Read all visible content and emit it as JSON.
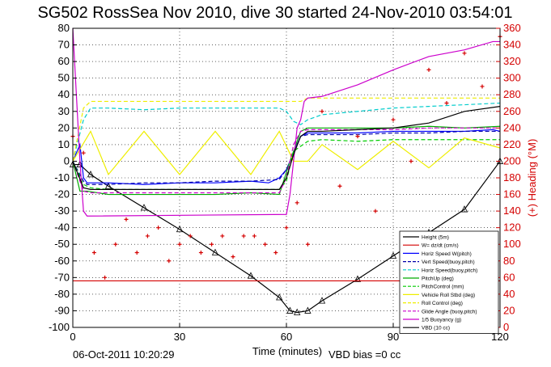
{
  "chart_data": {
    "type": "line",
    "title": "SG502 RossSea Nov 2010, dive 30 started 24-Nov-2010 03:54:01",
    "xlabel": "Time (minutes)",
    "ylabel_right": "(+) Heading (°M)",
    "xlim": [
      0,
      120
    ],
    "ylim": [
      -100,
      80
    ],
    "ylim_right": [
      0,
      360
    ],
    "x_ticks": [
      "0",
      "30",
      "60",
      "90",
      "120"
    ],
    "y_ticks": [
      "80",
      "70",
      "60",
      "50",
      "40",
      "30",
      "20",
      "10",
      "0",
      "-10",
      "-20",
      "-30",
      "-40",
      "-50",
      "-60",
      "-70",
      "-80",
      "-90",
      "-100"
    ],
    "y_right_ticks": [
      "360",
      "340",
      "320",
      "300",
      "280",
      "260",
      "240",
      "220",
      "200",
      "180",
      "160",
      "140",
      "120",
      "100",
      "80",
      "60",
      "40",
      "20",
      "0"
    ],
    "grid": true,
    "legend_position": "bottom-right",
    "footer_left": "06-Oct-2011 10:20:29",
    "footer_right": "VBD bias =0 cc",
    "series": [
      {
        "name": "Height (5m)",
        "color": "#000000",
        "style": "solid-triangle",
        "x": [
          0,
          2,
          5,
          10,
          20,
          30,
          40,
          50,
          58,
          61,
          63,
          66,
          70,
          80,
          90,
          100,
          110,
          120
        ],
        "y": [
          -2,
          -2,
          -8,
          -15,
          -28,
          -41,
          -55,
          -69,
          -82,
          -90,
          -91,
          -90,
          -84,
          -71,
          -57,
          -43,
          -29,
          0
        ]
      },
      {
        "name": "W= dz/dt (cm/s)",
        "color": "#d40000",
        "style": "solid",
        "x": [
          0,
          120
        ],
        "y": [
          -72,
          -72
        ]
      },
      {
        "name": "Horiz Speed W(pitch)",
        "color": "#0000ff",
        "style": "solid",
        "x": [
          0,
          2,
          3,
          4,
          10,
          20,
          30,
          40,
          50,
          55,
          58,
          60,
          62,
          64,
          66,
          70,
          80,
          90,
          100,
          110,
          118,
          120
        ],
        "y": [
          0,
          10,
          -10,
          -13,
          -13,
          -14,
          -13,
          -13,
          -12,
          -13,
          -10,
          -5,
          5,
          15,
          17,
          17,
          17,
          18,
          18,
          18,
          19,
          18
        ]
      },
      {
        "name": "Vert Speed(buoy,pitch)",
        "color": "#0000aa",
        "style": "dashed",
        "x": [
          0,
          3,
          4,
          10,
          20,
          30,
          40,
          50,
          58,
          60,
          62,
          64,
          66,
          70,
          80,
          90,
          100,
          110,
          120
        ],
        "y": [
          0,
          -12,
          -14,
          -14,
          -13,
          -13,
          -12,
          -12,
          -11,
          -5,
          5,
          15,
          16,
          16,
          16,
          17,
          17,
          18,
          18
        ]
      },
      {
        "name": "Horiz Speed(buoy,pitch)",
        "color": "#00cccc",
        "style": "dashed",
        "x": [
          0,
          3,
          5,
          10,
          20,
          30,
          40,
          50,
          58,
          60,
          62,
          64,
          66,
          70,
          80,
          90,
          100,
          110,
          120
        ],
        "y": [
          0,
          25,
          32,
          32,
          31,
          32,
          32,
          32,
          32,
          30,
          24,
          22,
          25,
          28,
          30,
          32,
          33,
          34,
          35
        ]
      },
      {
        "name": "PitchUp (deg)",
        "color": "#00aa00",
        "style": "solid",
        "x": [
          0,
          2,
          4,
          10,
          20,
          30,
          40,
          50,
          58,
          61,
          64,
          66,
          70,
          80,
          90,
          100,
          110,
          120
        ],
        "y": [
          0,
          -18,
          -18,
          -20,
          -20,
          -20,
          -20,
          -19,
          -20,
          0,
          18,
          20,
          20,
          20,
          20,
          21,
          20,
          21
        ]
      },
      {
        "name": "PitchControl (mm)",
        "color": "#00cc00",
        "style": "dashed",
        "x": [
          0,
          3,
          5,
          10,
          20,
          30,
          40,
          50,
          58,
          60,
          62,
          66,
          70,
          80,
          90,
          100,
          110,
          120
        ],
        "y": [
          0,
          -14,
          -16,
          -17,
          -17,
          -17,
          -17,
          -17,
          -17,
          -12,
          6,
          12,
          13,
          12,
          13,
          13,
          13,
          13
        ]
      },
      {
        "name": "Vehicle Roll Stbd (deg)",
        "color": "#eeee00",
        "style": "solid",
        "x": [
          0,
          5,
          10,
          20,
          30,
          40,
          50,
          58,
          62,
          66,
          70,
          80,
          90,
          100,
          110,
          120
        ],
        "y": [
          0,
          18,
          -8,
          18,
          -8,
          18,
          -8,
          18,
          0,
          0,
          10,
          -5,
          12,
          -4,
          14,
          8
        ]
      },
      {
        "name": "Roll Control (deg)",
        "color": "#eeee00",
        "style": "dashed",
        "x": [
          0,
          3,
          5,
          10,
          20,
          30,
          40,
          50,
          58,
          60,
          64,
          66,
          70,
          80,
          90,
          100,
          110,
          120
        ],
        "y": [
          0,
          32,
          36,
          36,
          36,
          36,
          36,
          36,
          36,
          36,
          36,
          38,
          38,
          38,
          38,
          38,
          38,
          38
        ]
      },
      {
        "name": "Glide Angle (buoy,pitch)",
        "color": "#cc00cc",
        "style": "dashed",
        "x": [
          0,
          3,
          5,
          10,
          20,
          30,
          40,
          50,
          58,
          60,
          62,
          64,
          66,
          70,
          80,
          90,
          100,
          110,
          120
        ],
        "y": [
          0,
          -18,
          -19,
          -19,
          -19,
          -19,
          -19,
          -19,
          -19,
          -10,
          10,
          18,
          19,
          19,
          19,
          19,
          20,
          20,
          20
        ]
      },
      {
        "name": "1/5 Buoyancy (g)",
        "color": "#cc00cc",
        "style": "solid",
        "x": [
          0,
          1,
          2,
          3,
          4,
          60,
          61,
          62,
          63,
          64,
          65,
          66,
          70,
          80,
          90,
          100,
          110,
          118,
          120
        ],
        "y": [
          80,
          40,
          0,
          -30,
          -33,
          -32,
          -20,
          0,
          20,
          25,
          36,
          38,
          39,
          46,
          55,
          63,
          67,
          72,
          72
        ]
      },
      {
        "name": "VBD (10 cc)",
        "color": "#000000",
        "style": "solid",
        "x": [
          0,
          3,
          5,
          10,
          20,
          30,
          40,
          50,
          58,
          60,
          62,
          64,
          66,
          70,
          80,
          90,
          100,
          110,
          120
        ],
        "y": [
          0,
          -16,
          -17,
          -17,
          -17,
          -17,
          -17,
          -17,
          -17,
          -10,
          4,
          15,
          18,
          18,
          19,
          20,
          23,
          30,
          33
        ]
      }
    ],
    "heading_series": {
      "name": "(+) Heading (°M)",
      "color": "#d40000",
      "x": [
        0,
        3,
        6,
        9,
        12,
        15,
        18,
        21,
        24,
        27,
        30,
        33,
        36,
        39,
        42,
        45,
        48,
        51,
        54,
        57,
        60,
        63,
        66,
        70,
        75,
        80,
        85,
        90,
        95,
        100,
        105,
        110,
        115,
        120
      ],
      "y": [
        230,
        210,
        90,
        60,
        100,
        130,
        90,
        110,
        120,
        80,
        100,
        110,
        90,
        100,
        110,
        85,
        110,
        110,
        100,
        90,
        120,
        150,
        100,
        260,
        170,
        230,
        140,
        250,
        200,
        310,
        270,
        330,
        290,
        350
      ]
    }
  }
}
